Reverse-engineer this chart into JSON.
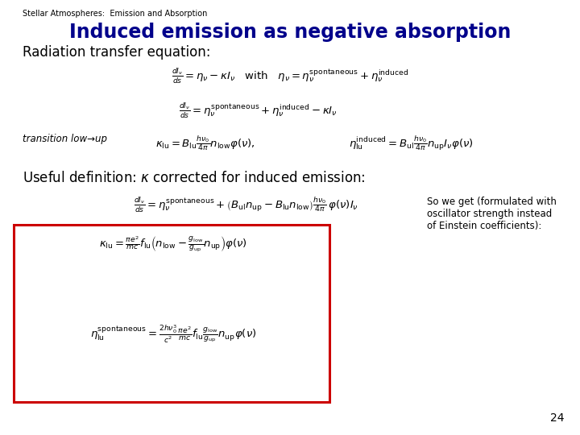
{
  "header": "Stellar Atmospheres:  Emission and Absorption",
  "title": "Induced emission as negative absorption",
  "page_num": "24",
  "bg_color": "#ffffff",
  "title_color": "#00008B",
  "text_color": "#000000",
  "box_color": "#cc0000",
  "figw": 7.2,
  "figh": 5.4,
  "dpi": 100
}
